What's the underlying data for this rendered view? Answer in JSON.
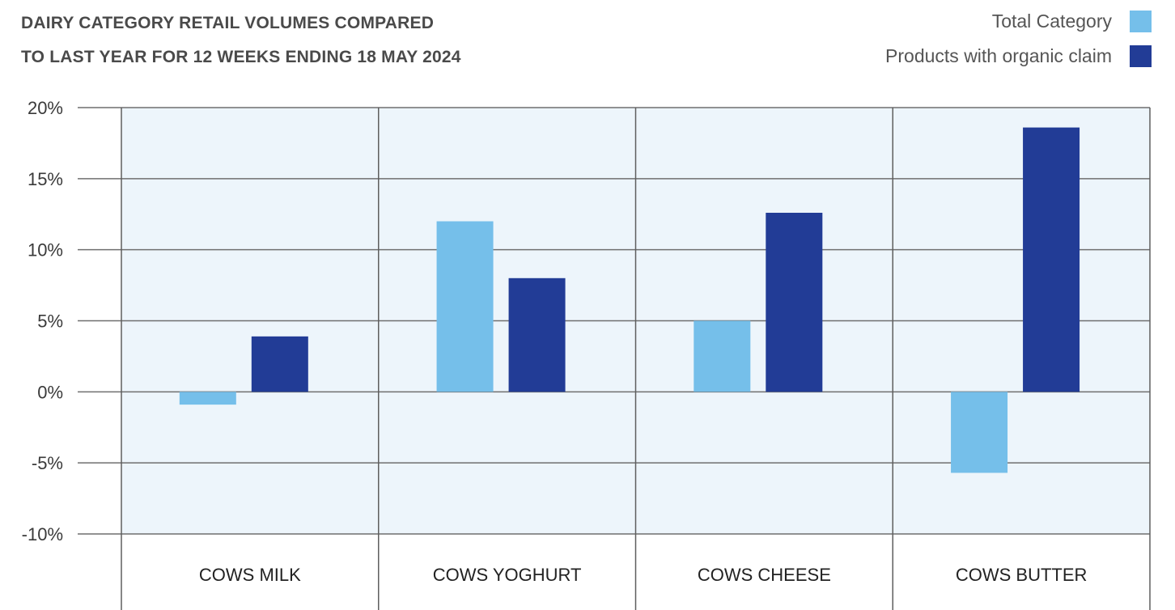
{
  "title_lines": [
    "DAIRY CATEGORY RETAIL VOLUMES COMPARED",
    "TO LAST YEAR FOR 12 WEEKS ENDING 18 MAY 2024"
  ],
  "legend": [
    {
      "label": "Total Category",
      "color": "#75bfea"
    },
    {
      "label": "Products with organic claim",
      "color": "#223c96"
    }
  ],
  "chart_data": {
    "type": "bar",
    "title": "DAIRY CATEGORY RETAIL VOLUMES COMPARED TO LAST YEAR FOR 12 WEEKS ENDING 18 MAY 2024",
    "categories": [
      "COWS MILK",
      "COWS YOGHURT",
      "COWS CHEESE",
      "COWS BUTTER"
    ],
    "series": [
      {
        "name": "Total Category",
        "color": "#75bfea",
        "values": [
          -0.9,
          12.0,
          5.0,
          -5.7
        ]
      },
      {
        "name": "Products with organic claim",
        "color": "#223c96",
        "values": [
          3.9,
          8.0,
          12.6,
          18.6
        ]
      }
    ],
    "ylim": [
      -10,
      20
    ],
    "yticks": [
      20,
      15,
      10,
      5,
      0,
      -5,
      -10
    ],
    "ytick_labels": [
      "20%",
      "15%",
      "10%",
      "5%",
      "0%",
      "-5%",
      "-10%"
    ],
    "xlabel": "",
    "ylabel": "",
    "grid": true,
    "legend_position": "top-right",
    "plot_background": "#edf5fb"
  }
}
